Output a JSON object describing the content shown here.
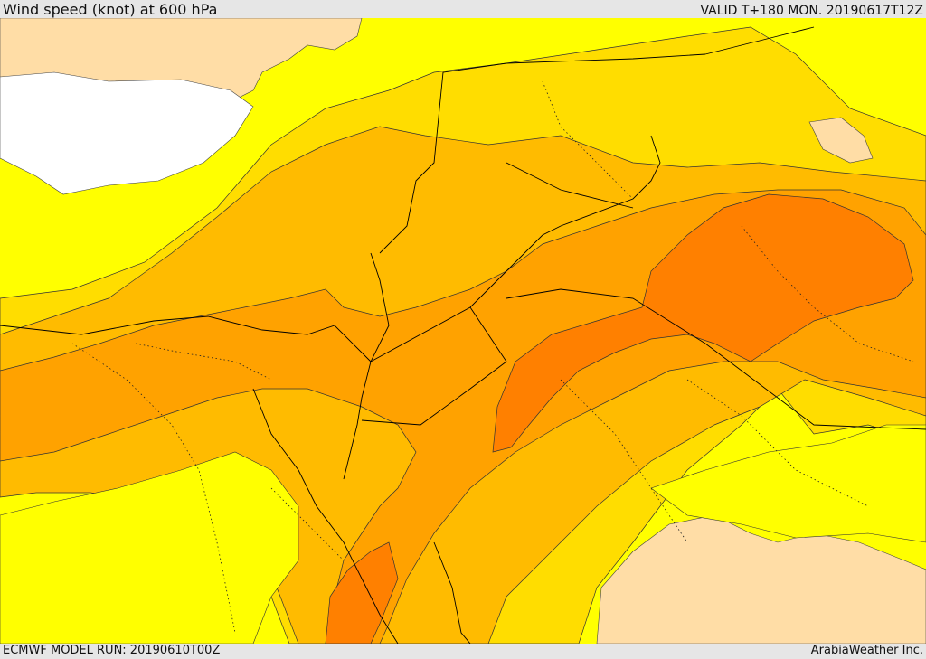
{
  "header": {
    "title": "Wind speed (knot) at 600 hPa",
    "valid_time": "VALID T+180 MON. 20190617T12Z"
  },
  "footer": {
    "model_run": "ECMWF MODEL RUN: 20190610T00Z",
    "credit": "ArabiaWeather Inc."
  },
  "colors": {
    "bin_lt_10": "#ffdda6",
    "bin_10_15": "#ffff00",
    "bin_15_20": "#ffdd00",
    "bin_20_25": "#ffbb00",
    "bin_25_30": "#ffa200",
    "bin_30_35": "#ff8000",
    "missing": "#ffffff",
    "borders": "#000000"
  }
}
